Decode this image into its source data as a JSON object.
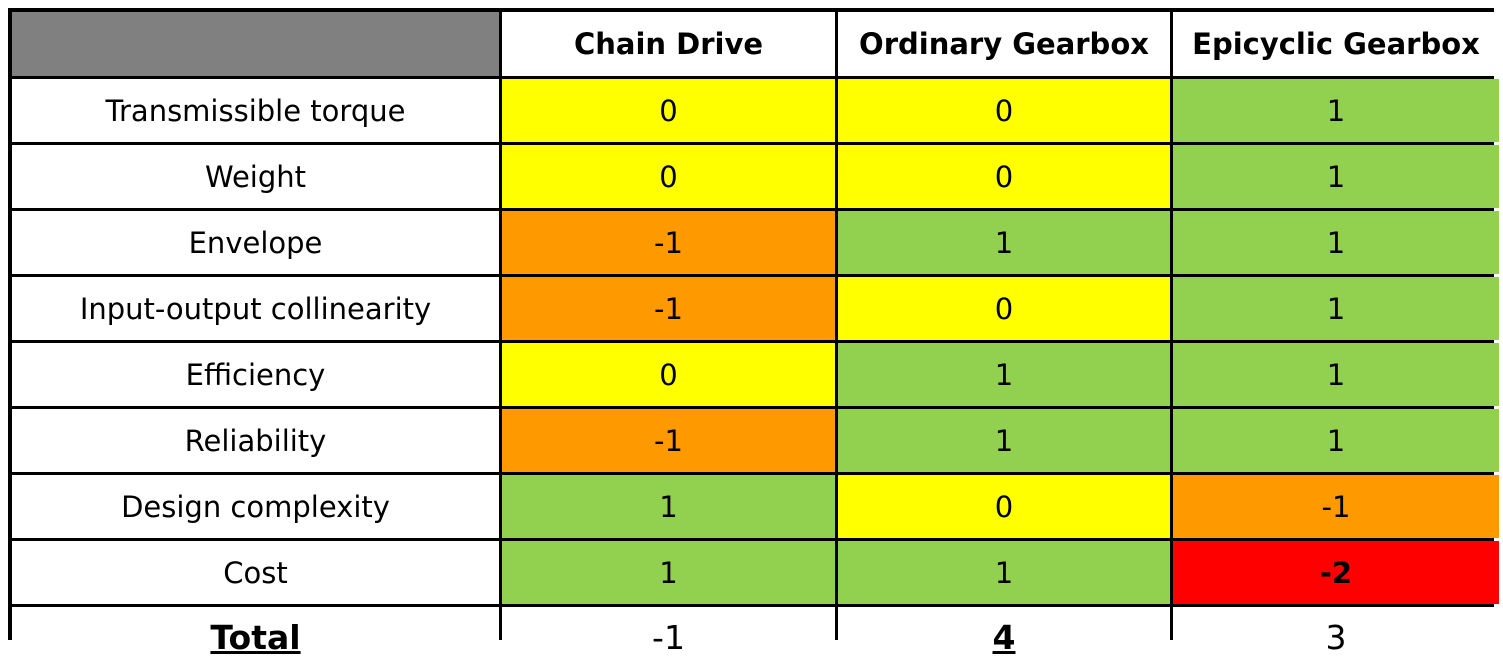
{
  "colors": {
    "score_2": "#92d050",
    "score_1": "#92d050",
    "score_0": "#ffff00",
    "score_-1": "#ff9900",
    "score_-2": "#ff0000",
    "header_corner": "#808080"
  },
  "table": {
    "columns": [
      "Chain Drive",
      "Ordinary Gearbox",
      "Epicyclic Gearbox"
    ],
    "rows": [
      {
        "criterion": "Transmissible torque",
        "scores": [
          "0",
          "0",
          "1"
        ]
      },
      {
        "criterion": "Weight",
        "scores": [
          "0",
          "0",
          "1"
        ]
      },
      {
        "criterion": "Envelope",
        "scores": [
          "-1",
          "1",
          "1"
        ]
      },
      {
        "criterion": "Input-output collinearity",
        "scores": [
          "-1",
          "0",
          "1"
        ]
      },
      {
        "criterion": "Efficiency",
        "scores": [
          "0",
          "1",
          "1"
        ]
      },
      {
        "criterion": "Reliability",
        "scores": [
          "-1",
          "1",
          "1"
        ]
      },
      {
        "criterion": "Design complexity",
        "scores": [
          "1",
          "0",
          "-1"
        ]
      },
      {
        "criterion": "Cost",
        "scores": [
          "1",
          "1",
          "-2"
        ]
      }
    ],
    "total_label": "Total",
    "totals": [
      "-1",
      "4",
      "3"
    ]
  }
}
